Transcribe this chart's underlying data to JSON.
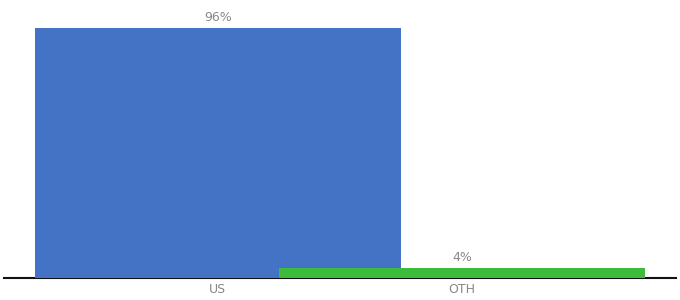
{
  "categories": [
    "US",
    "OTH"
  ],
  "values": [
    96,
    4
  ],
  "bar_colors": [
    "#4472c4",
    "#3dbb3d"
  ],
  "labels": [
    "96%",
    "4%"
  ],
  "ylim": [
    0,
    105
  ],
  "background_color": "#ffffff",
  "bar_width": 0.6,
  "label_fontsize": 9,
  "tick_fontsize": 9,
  "axis_line_color": "#111111"
}
